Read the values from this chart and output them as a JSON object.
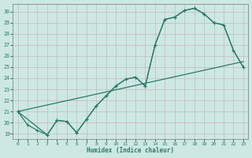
{
  "xlabel": "Humidex (Indice chaleur)",
  "background_color": "#cde8e3",
  "grid_color": "#c0d8d4",
  "line_color": "#2a7a6a",
  "xlim": [
    -0.5,
    23.5
  ],
  "ylim": [
    18.5,
    30.7
  ],
  "xticks": [
    0,
    1,
    2,
    3,
    4,
    5,
    6,
    7,
    8,
    9,
    10,
    11,
    12,
    13,
    14,
    15,
    16,
    17,
    18,
    19,
    20,
    21,
    22,
    23
  ],
  "yticks": [
    19,
    20,
    21,
    22,
    23,
    24,
    25,
    26,
    27,
    28,
    29,
    30
  ],
  "line1_x": [
    0,
    1,
    2,
    3,
    4,
    5,
    6,
    7,
    8,
    9,
    10,
    11,
    12,
    13,
    14,
    15,
    16,
    17,
    18,
    19,
    20,
    21,
    22,
    23
  ],
  "line1_y": [
    21.0,
    19.8,
    19.3,
    18.9,
    20.2,
    20.1,
    19.1,
    20.3,
    21.5,
    22.4,
    23.3,
    23.9,
    24.1,
    23.3,
    27.0,
    29.3,
    29.5,
    30.1,
    30.3,
    29.8,
    29.0,
    28.8,
    26.5,
    25.0
  ],
  "line2_x": [
    0,
    3,
    4,
    5,
    6,
    7,
    8,
    9,
    10,
    11,
    12,
    13,
    14,
    15,
    16,
    17,
    18,
    19,
    20,
    21,
    22,
    23
  ],
  "line2_y": [
    21.0,
    18.9,
    20.2,
    20.1,
    19.1,
    20.3,
    21.5,
    22.4,
    23.3,
    23.9,
    24.1,
    23.3,
    27.0,
    29.3,
    29.5,
    30.1,
    30.3,
    29.8,
    29.0,
    28.8,
    26.5,
    25.0
  ],
  "line3_x": [
    0,
    23
  ],
  "line3_y": [
    21.0,
    25.5
  ]
}
